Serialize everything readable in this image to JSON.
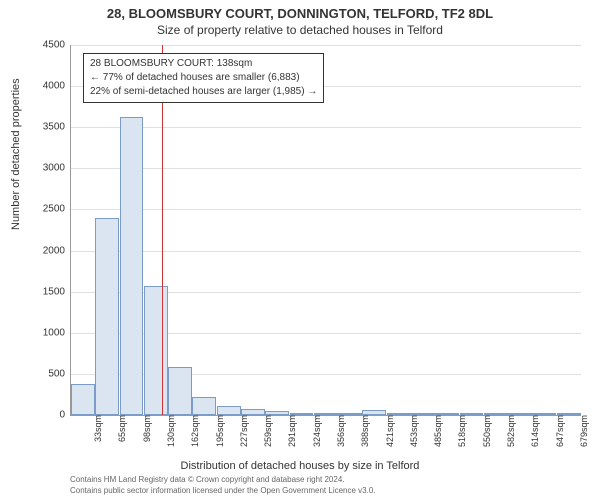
{
  "title_main": "28, BLOOMSBURY COURT, DONNINGTON, TELFORD, TF2 8DL",
  "title_sub": "Size of property relative to detached houses in Telford",
  "y_axis_label": "Number of detached properties",
  "x_axis_label": "Distribution of detached houses by size in Telford",
  "footer_line1": "Contains HM Land Registry data © Crown copyright and database right 2024.",
  "footer_line2": "Contains public sector information licensed under the Open Government Licence v3.0.",
  "chart": {
    "type": "histogram",
    "background_color": "#ffffff",
    "grid_color": "#e0e0e0",
    "axis_color": "#999999",
    "bar_fill": "#dbe5f1",
    "bar_border": "#7a9cc6",
    "reference_line_color": "#cc3333",
    "tick_font_size": 10,
    "label_font_size": 11,
    "ylim": [
      0,
      4500
    ],
    "y_ticks": [
      0,
      500,
      1000,
      1500,
      2000,
      2500,
      3000,
      3500,
      4000,
      4500
    ],
    "x_categories": [
      "33sqm",
      "65sqm",
      "98sqm",
      "130sqm",
      "162sqm",
      "195sqm",
      "227sqm",
      "259sqm",
      "291sqm",
      "324sqm",
      "356sqm",
      "388sqm",
      "421sqm",
      "453sqm",
      "485sqm",
      "518sqm",
      "550sqm",
      "582sqm",
      "614sqm",
      "647sqm",
      "679sqm"
    ],
    "values": [
      380,
      2400,
      3630,
      1570,
      590,
      220,
      110,
      70,
      50,
      30,
      20,
      15,
      60,
      10,
      8,
      6,
      5,
      4,
      3,
      2,
      2
    ],
    "reference_value_sqm": 138,
    "x_range_sqm": [
      17,
      695
    ],
    "annotation": {
      "line1": "28 BLOOMSBURY COURT: 138sqm",
      "line2": "← 77% of detached houses are smaller (6,883)",
      "line3": "22% of semi-detached houses are larger (1,985) →",
      "border_color": "#333333",
      "background": "#ffffff",
      "font_size": 10
    }
  }
}
